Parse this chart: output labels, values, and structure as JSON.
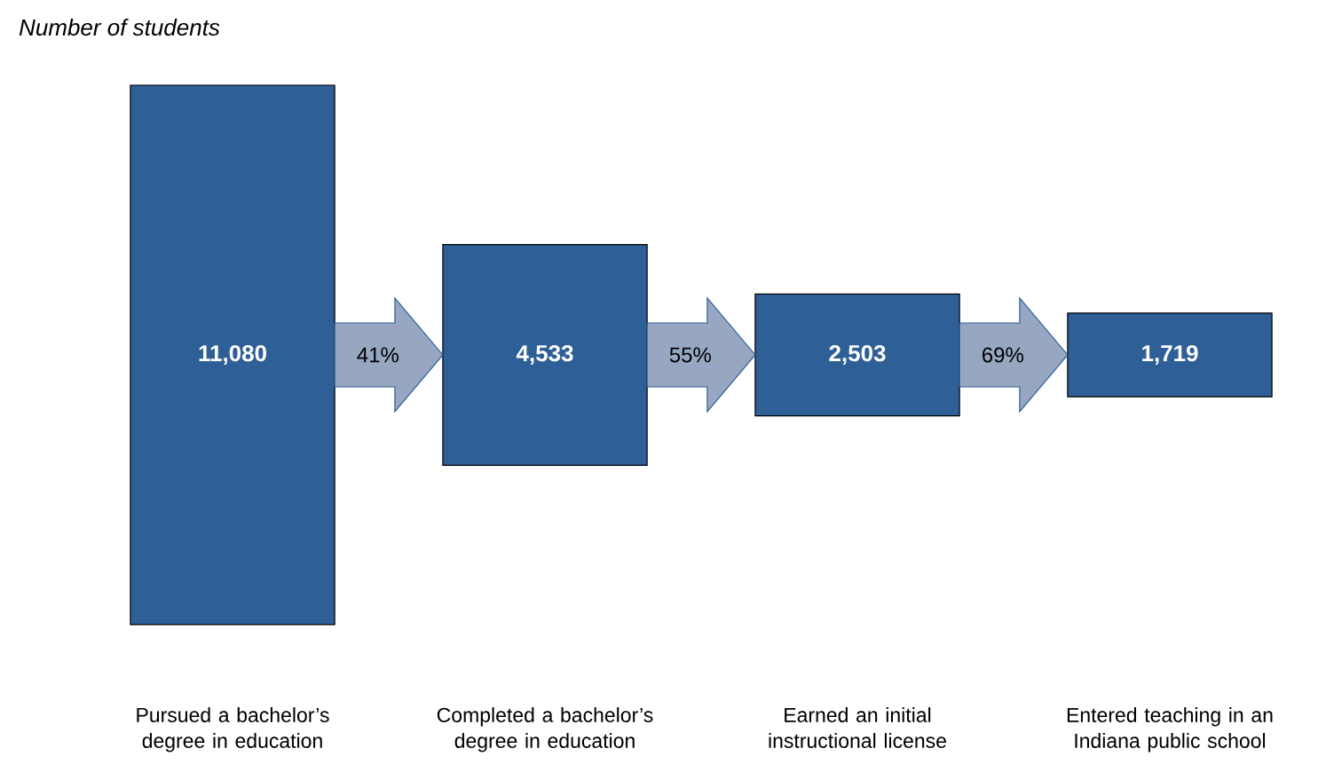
{
  "chart_data": {
    "type": "other",
    "title": "Number of students",
    "categories": [
      "Pursued a bachelor’s degree in education",
      "Completed a bachelor’s degree in education",
      "Earned an initial instructional license",
      "Entered teaching in an Indiana public school"
    ],
    "values": [
      11080,
      4533,
      2503,
      1719
    ],
    "value_labels": [
      "11,080",
      "4,533",
      "2,503",
      "1,719"
    ],
    "color": "#2e5f96",
    "annotations": [
      "41%",
      "55%",
      "69%"
    ]
  }
}
